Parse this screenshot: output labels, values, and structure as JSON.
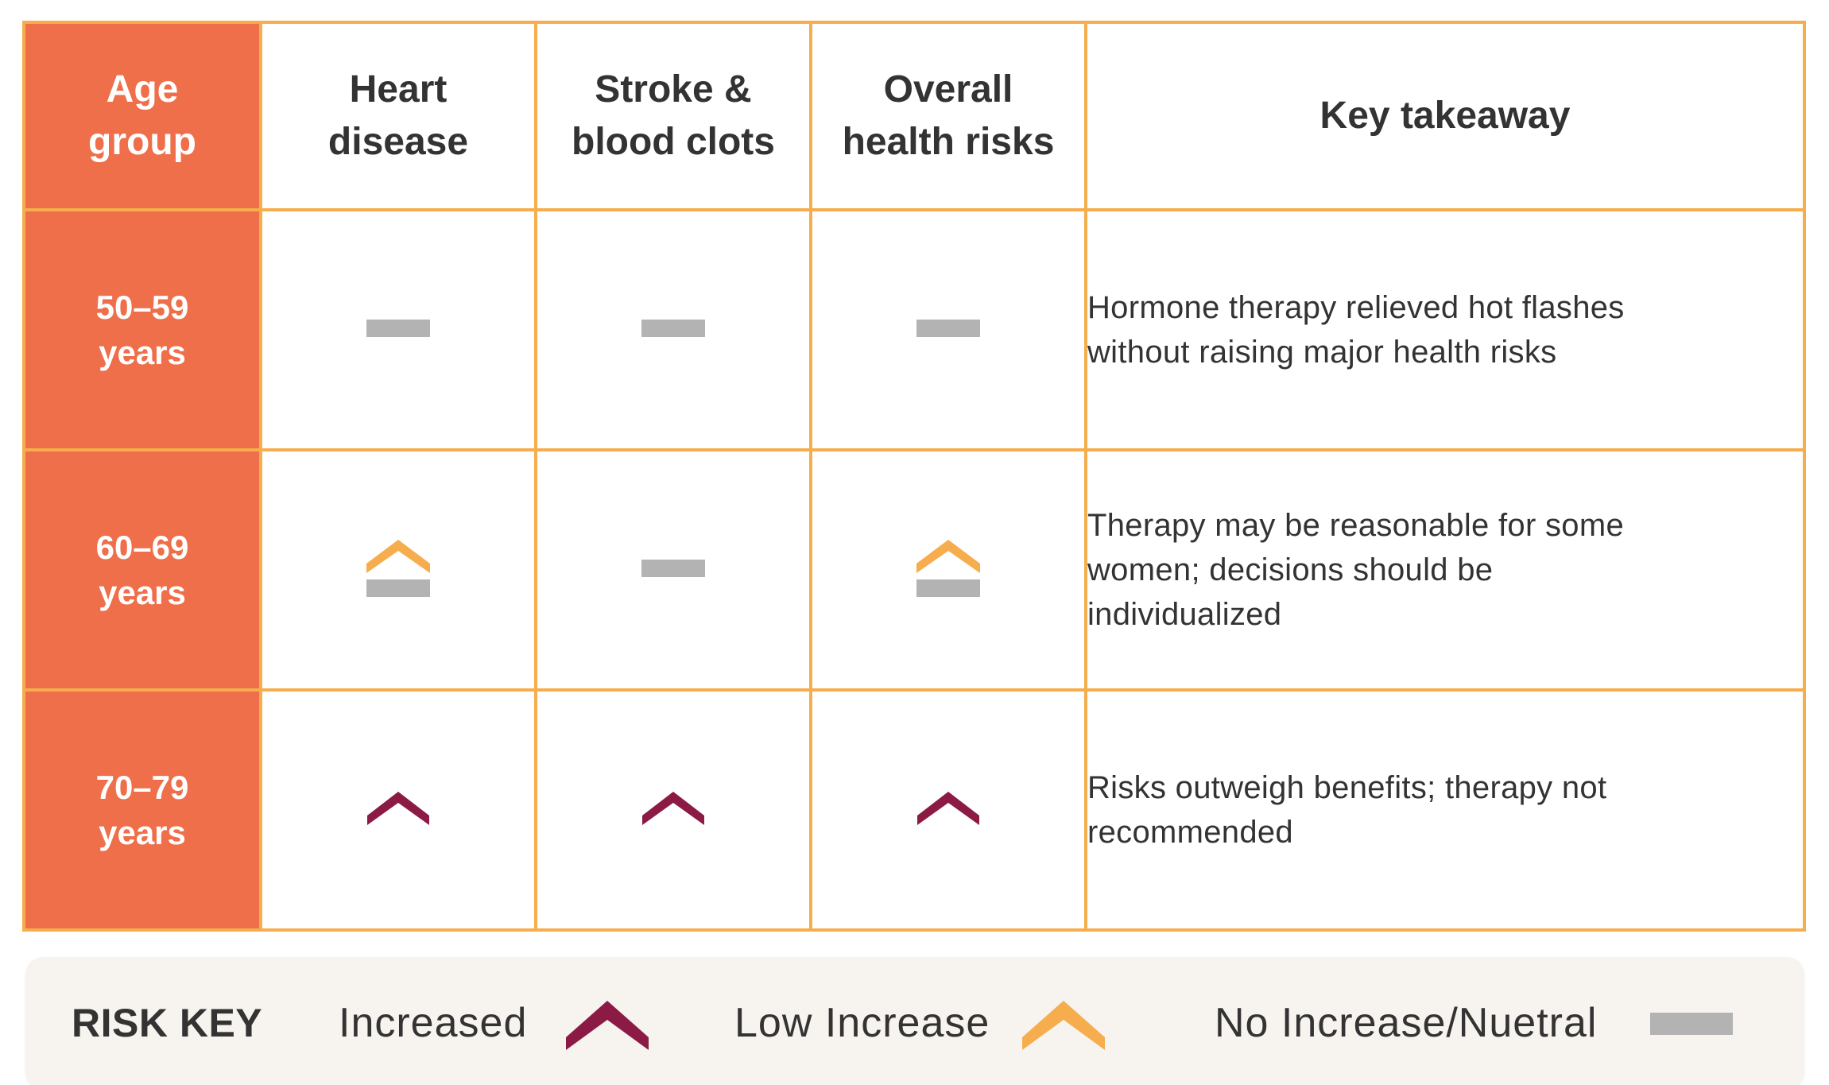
{
  "colors": {
    "age_column": "#ee6f4a",
    "grid_border": "#f6ad4e",
    "increased": "#8b1a45",
    "low_increase": "#f6ad4e",
    "no_increase": "#b3b3b3",
    "legend_background": "#f7f3ee"
  },
  "table": {
    "headers": {
      "age": [
        "Age",
        "group"
      ],
      "heart": [
        "Heart",
        "disease"
      ],
      "stroke": [
        "Stroke &",
        "blood clots"
      ],
      "overall": [
        "Overall",
        "health risks"
      ],
      "takeaway": "Key takeaway"
    },
    "rows": [
      {
        "age": [
          "50–59",
          "years"
        ],
        "heart_icon": "no-increase",
        "stroke_icon": "no-increase",
        "overall_icon": "no-increase",
        "takeaway": [
          "Hormone therapy relieved hot flashes",
          "without raising major health risks"
        ]
      },
      {
        "age": [
          "60–69",
          "years"
        ],
        "heart_icon": "low-increase",
        "stroke_icon": "no-increase",
        "overall_icon": "low-increase",
        "takeaway": [
          "Therapy may be reasonable for some",
          "women; decisions should be",
          "individualized"
        ]
      },
      {
        "age": [
          "70–79",
          "years"
        ],
        "heart_icon": "increased",
        "stroke_icon": "increased",
        "overall_icon": "increased",
        "takeaway": [
          "Risks outweigh benefits; therapy not",
          "recommended"
        ]
      }
    ]
  },
  "legend": {
    "title": "RISK KEY",
    "increased_label": "Increased",
    "increased_icon": "increased",
    "low_increase_label": "Low Increase",
    "low_increase_icon": "low-increase",
    "no_increase_label": "No Increase/Nuetral",
    "no_increase_icon": "no-increase"
  }
}
